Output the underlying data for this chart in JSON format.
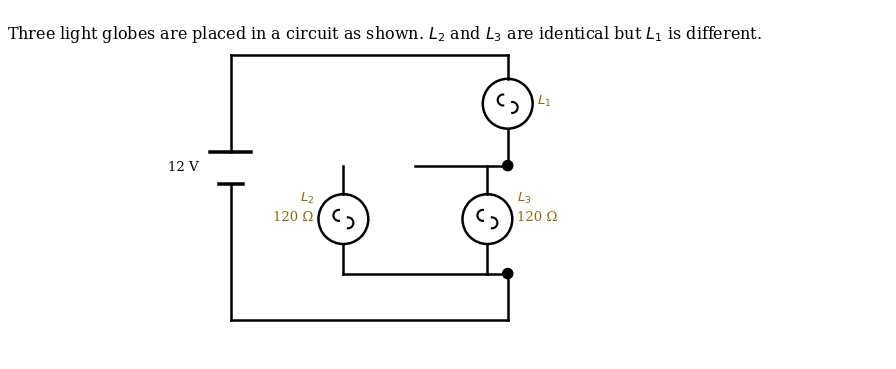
{
  "title_text": "Three light globes are placed in a circuit as shown. L",
  "title_sub2": " and L",
  "title_sub3": " are identical but L",
  "title_sub1": " is different.",
  "bg_color": "#ffffff",
  "wire_color": "#000000",
  "globe_color": "#000000",
  "text_color": "#000000",
  "label_color": "#8B6914",
  "battery_color": "#000000",
  "fig_width": 8.96,
  "fig_height": 3.69,
  "dpi": 100
}
